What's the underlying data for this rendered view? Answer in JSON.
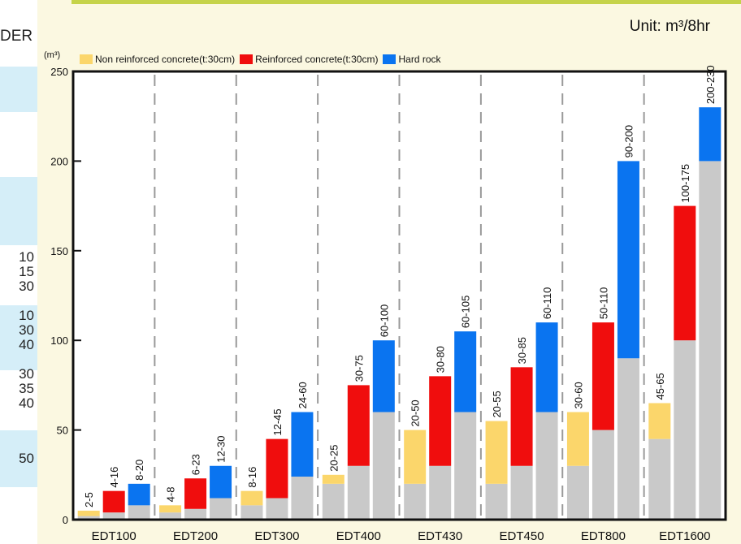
{
  "left_fragment": {
    "header_fragment": "DER",
    "numbers": [
      "10",
      "15",
      "30",
      "10",
      "30",
      "40",
      "30",
      "35",
      "40",
      "50"
    ]
  },
  "unit_label": "Unit: m³/8hr",
  "y_unit": "(m³)",
  "colors": {
    "base": "#c9c9c9",
    "non_reinforced": "#fbd66b",
    "reinforced": "#f00d0d",
    "hard_rock": "#0a74f0"
  },
  "chart_data": {
    "type": "bar",
    "title": "",
    "xlabel": "",
    "ylabel": "(m³)",
    "ylim": [
      0,
      250
    ],
    "yticks": [
      0,
      50,
      100,
      150,
      200,
      250
    ],
    "categories": [
      "EDT100",
      "EDT200",
      "EDT300",
      "EDT400",
      "EDT430",
      "EDT450",
      "EDT800",
      "EDT1600"
    ],
    "legend": [
      "Non reinforced concrete(t:30cm)",
      "Reinforced concrete(t:30cm)",
      "Hard rock"
    ],
    "legend_position": "top-left",
    "series": [
      {
        "name": "Non reinforced concrete(t:30cm)",
        "low": [
          2,
          4,
          8,
          20,
          20,
          20,
          30,
          45
        ],
        "high": [
          5,
          8,
          16,
          25,
          50,
          55,
          60,
          65
        ],
        "labels": [
          "2-5",
          "4-8",
          "8-16",
          "20-25",
          "20-50",
          "20-55",
          "30-60",
          "45-65"
        ]
      },
      {
        "name": "Reinforced concrete(t:30cm)",
        "low": [
          4,
          6,
          12,
          30,
          30,
          30,
          50,
          100
        ],
        "high": [
          16,
          23,
          45,
          75,
          80,
          85,
          110,
          175
        ],
        "labels": [
          "4-16",
          "6-23",
          "12-45",
          "30-75",
          "30-80",
          "30-85",
          "50-110",
          "100-175"
        ]
      },
      {
        "name": "Hard rock",
        "low": [
          8,
          12,
          24,
          60,
          60,
          60,
          90,
          200
        ],
        "high": [
          20,
          30,
          60,
          100,
          105,
          110,
          200,
          230
        ],
        "labels": [
          "8-20",
          "12-30",
          "24-60",
          "60-100",
          "60-105",
          "60-110",
          "90-200",
          "200-230"
        ]
      }
    ]
  }
}
